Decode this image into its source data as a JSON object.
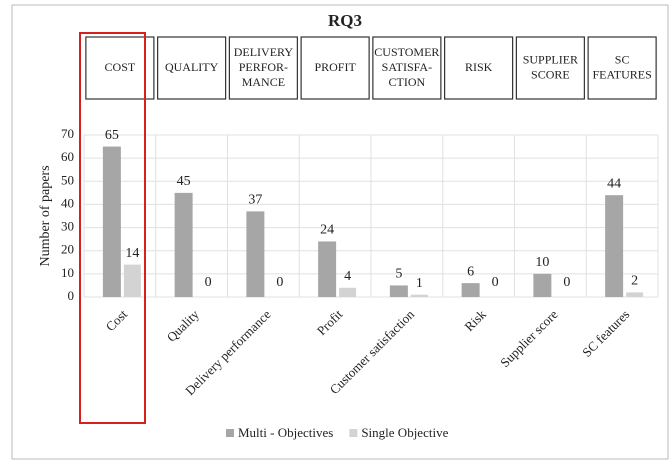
{
  "chart_data": {
    "type": "bar",
    "title": "RQ3",
    "headers": [
      [
        "COST"
      ],
      [
        "QUALITY"
      ],
      [
        "DELIVERY",
        "PERFOR-",
        "MANCE"
      ],
      [
        "PROFIT"
      ],
      [
        "CUSTOMER",
        "SATISFA-",
        "CTION"
      ],
      [
        "RISK"
      ],
      [
        "SUPPLIER",
        "SCORE"
      ],
      [
        "SC",
        "FEATURES"
      ]
    ],
    "categories": [
      "Cost",
      "Quality",
      "Delivery performance",
      "Profit",
      "Customer satisfaction",
      "Risk",
      "Supplier score",
      "SC features"
    ],
    "series": [
      {
        "name": "Multi - Objectives",
        "color": "#a6a6a6",
        "values": [
          65,
          45,
          37,
          24,
          5,
          6,
          10,
          44
        ]
      },
      {
        "name": "Single Objective",
        "color": "#d3d3d3",
        "values": [
          14,
          0,
          0,
          4,
          1,
          0,
          0,
          2
        ]
      }
    ],
    "ylabel": "Number of papers",
    "ylim": [
      0,
      70
    ],
    "yticks": [
      0,
      10,
      20,
      30,
      40,
      50,
      60,
      70
    ],
    "grid": true,
    "legend": "bottom"
  }
}
